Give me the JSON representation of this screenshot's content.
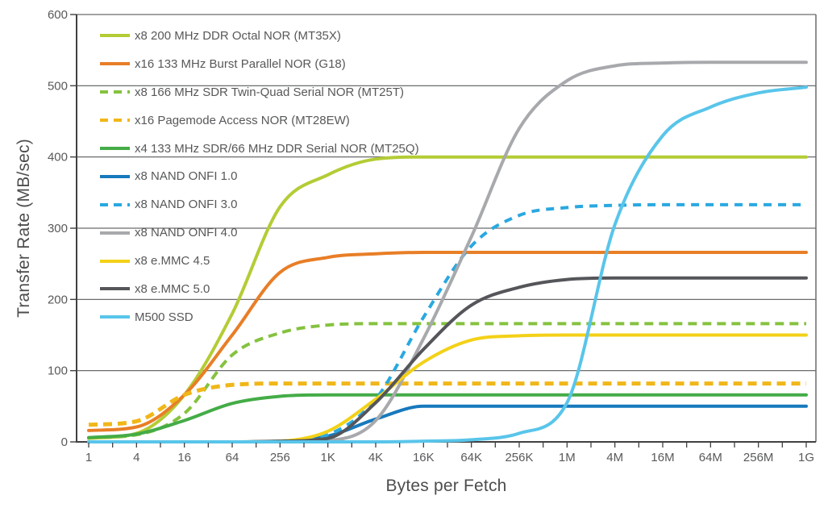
{
  "figure": {
    "background": "#ffffff"
  },
  "colors": {
    "axis": "#414042",
    "grid": "#6a6c6e",
    "tick_text": "#58595b",
    "axis_title_text": "#4c4d4f"
  },
  "chart_data": {
    "type": "line",
    "title": "",
    "xlabel": "Bytes per Fetch",
    "ylabel": "Transfer Rate (MB/sec)",
    "x_scale": "log4",
    "grid": "horizontal",
    "legend_position": "upper-left-inside",
    "ylim": [
      0,
      600
    ],
    "y_ticks": [
      0,
      100,
      200,
      300,
      400,
      500,
      600
    ],
    "x_tick_labels": [
      "1",
      "4",
      "16",
      "64",
      "256",
      "1K",
      "4K",
      "16K",
      "64K",
      "256K",
      "1M",
      "4M",
      "16M",
      "64M",
      "256M",
      "1G"
    ],
    "x_values_bytes": [
      1,
      4,
      16,
      64,
      256,
      1024,
      4096,
      16384,
      65536,
      262144,
      1048576,
      4194304,
      16777216,
      67108864,
      268435456,
      1073741824
    ],
    "series": [
      {
        "label": "x8 200 MHz DDR Octal NOR (MT35X)",
        "color": "#b4cc35",
        "dash": false,
        "values": [
          5,
          12,
          66,
          180,
          330,
          375,
          397,
          400,
          400,
          400,
          400,
          400,
          400,
          400,
          400,
          400
        ]
      },
      {
        "label": "x16 133 MHz Burst Parallel NOR (G18)",
        "color": "#e87e27",
        "dash": false,
        "values": [
          16,
          21,
          66,
          150,
          238,
          259,
          264,
          266,
          266,
          266,
          266,
          266,
          266,
          266,
          266,
          266
        ]
      },
      {
        "label": "x8 166 MHz SDR Twin-Quad Serial NOR (MT25T)",
        "color": "#85c23f",
        "dash": true,
        "values": [
          6,
          10,
          40,
          122,
          153,
          164,
          166,
          166,
          166,
          166,
          166,
          166,
          166,
          166,
          166,
          166
        ]
      },
      {
        "label": "x16 Pagemode Access  NOR (MT28EW)",
        "color": "#f0b719",
        "dash": true,
        "values": [
          24,
          29,
          66,
          80,
          82,
          82,
          82,
          82,
          82,
          82,
          82,
          82,
          82,
          82,
          82,
          82
        ]
      },
      {
        "label": "x4 133 MHz SDR/66 MHz DDR Serial NOR (MT25Q)",
        "color": "#44ac47",
        "dash": false,
        "values": [
          6,
          11,
          30,
          54,
          64,
          66,
          66,
          66,
          66,
          66,
          66,
          66,
          66,
          66,
          66,
          66
        ]
      },
      {
        "label": "x8 NAND ONFI 1.0",
        "color": "#1779bd",
        "dash": false,
        "values": [
          0,
          0,
          0,
          0,
          1,
          8,
          32,
          50,
          50,
          50,
          50,
          50,
          50,
          50,
          50,
          50
        ]
      },
      {
        "label": "x8 NAND ONFI 3.0",
        "color": "#2aa8e0",
        "dash": true,
        "values": [
          0,
          0,
          0,
          0,
          1,
          10,
          60,
          175,
          275,
          318,
          329,
          332,
          333,
          333,
          333,
          333
        ]
      },
      {
        "label": "x8 NAND ONFI 4.0",
        "color": "#a7a9ac",
        "dash": false,
        "values": [
          0,
          0,
          0,
          0,
          0,
          2,
          30,
          145,
          288,
          440,
          507,
          528,
          532,
          533,
          533,
          533
        ]
      },
      {
        "label": "x8 e.MMC 4.5",
        "color": "#f3d118",
        "dash": false,
        "values": [
          0,
          0,
          0,
          0,
          1,
          15,
          60,
          112,
          143,
          149,
          150,
          150,
          150,
          150,
          150,
          150
        ]
      },
      {
        "label": "x8 e.MMC 5.0",
        "color": "#55565a",
        "dash": false,
        "values": [
          0,
          0,
          0,
          0,
          1,
          5,
          55,
          130,
          192,
          217,
          228,
          230,
          230,
          230,
          230,
          230
        ]
      },
      {
        "label": "M500 SSD",
        "color": "#59c5ea",
        "dash": false,
        "values": [
          0,
          0,
          0,
          0,
          0,
          0,
          0,
          1,
          3,
          12,
          55,
          305,
          430,
          470,
          490,
          498
        ]
      }
    ]
  }
}
